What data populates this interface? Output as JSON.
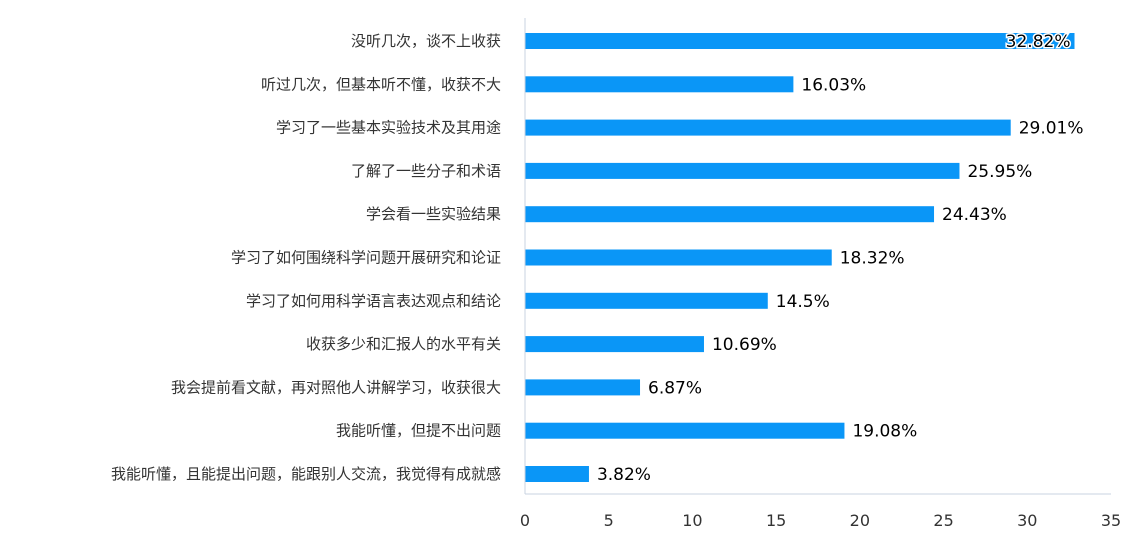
{
  "chart_data": {
    "type": "bar",
    "orientation": "horizontal",
    "categories": [
      "没听几次，谈不上收获",
      "听过几次，但基本听不懂，收获不大",
      "学习了一些基本实验技术及其用途",
      "了解了一些分子和术语",
      "学会看一些实验结果",
      "学习了如何围绕科学问题开展研究和论证",
      "学习了如何用科学语言表达观点和结论",
      "收获多少和汇报人的水平有关",
      "我会提前看文献，再对照他人讲解学习，收获很大",
      "我能听懂，但提不出问题",
      "我能听懂，且能提出问题，能跟别人交流，我觉得有成就感"
    ],
    "values": [
      32.82,
      16.03,
      29.01,
      25.95,
      24.43,
      18.32,
      14.5,
      10.69,
      6.87,
      19.08,
      3.82
    ],
    "data_labels": [
      "32.82%",
      "16.03%",
      "29.01%",
      "25.95%",
      "24.43%",
      "18.32%",
      "14.5%",
      "10.69%",
      "6.87%",
      "19.08%",
      "3.82%"
    ],
    "xlim": [
      0,
      35
    ],
    "xticks": [
      0,
      5,
      10,
      15,
      20,
      25,
      30,
      35
    ],
    "xtick_labels": [
      "0",
      "5",
      "10",
      "15",
      "20",
      "25",
      "30",
      "35"
    ],
    "title": "",
    "xlabel": "",
    "ylabel": "",
    "grid": false,
    "legend": "none",
    "colors": {
      "bar": "#0a96f7",
      "axis": "#c9d3e0",
      "category_text": "#333333",
      "label_text": "#000000"
    }
  }
}
